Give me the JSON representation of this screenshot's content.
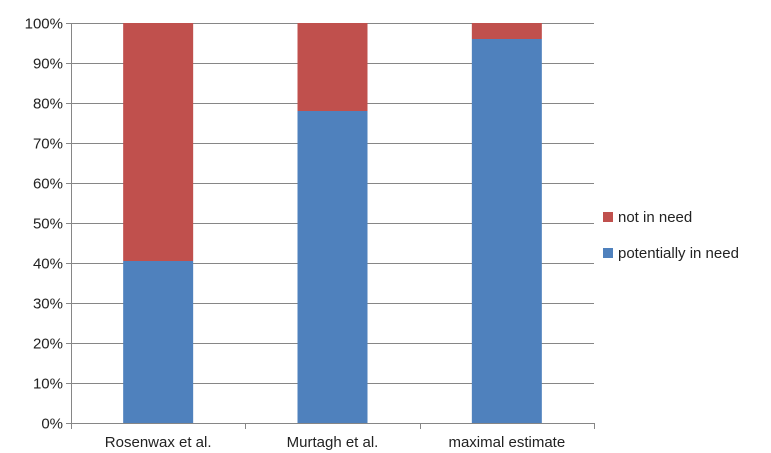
{
  "chart_data": {
    "type": "bar",
    "stacked": true,
    "categories": [
      "Rosenwax et al.",
      "Murtagh et al.",
      "maximal estimate"
    ],
    "series": [
      {
        "name": "potentially in need",
        "values": [
          40.5,
          78,
          96
        ],
        "color": "#4f81bd"
      },
      {
        "name": "not in need",
        "values": [
          59.5,
          22,
          4
        ],
        "color": "#c0504d"
      }
    ],
    "ylim": [
      0,
      100
    ],
    "ytick_labels": [
      "0%",
      "10%",
      "20%",
      "30%",
      "40%",
      "50%",
      "60%",
      "70%",
      "80%",
      "90%",
      "100%"
    ],
    "legend": [
      "not in need",
      "potentially in need"
    ],
    "legend_position": "right",
    "grid": true,
    "title": "",
    "xlabel": "",
    "ylabel": ""
  }
}
